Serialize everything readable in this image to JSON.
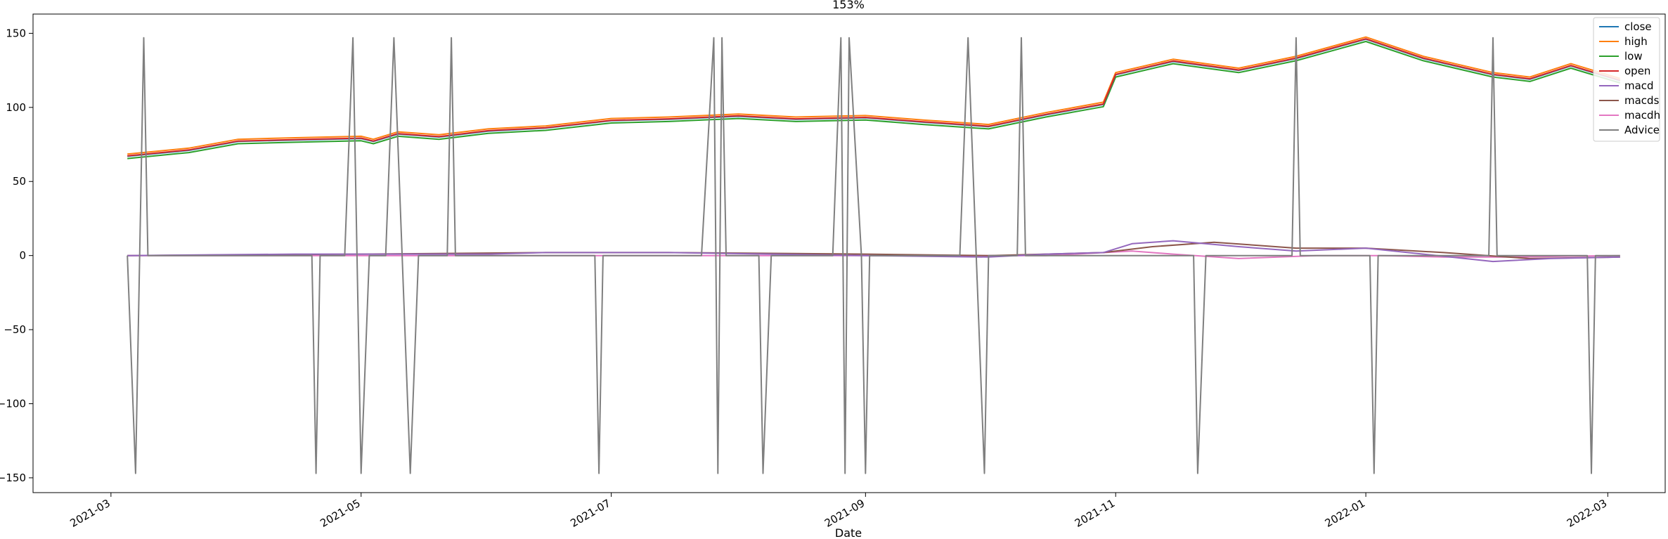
{
  "chart_data": {
    "type": "line",
    "title": "153%",
    "xlabel": "Date",
    "ylabel": "",
    "xlim": [
      "2021-02-10",
      "2022-03-15"
    ],
    "ylim": [
      -160,
      163
    ],
    "x_ticks": [
      {
        "date": "2021-03-01",
        "label": "2021-03"
      },
      {
        "date": "2021-05-01",
        "label": "2021-05"
      },
      {
        "date": "2021-07-01",
        "label": "2021-07"
      },
      {
        "date": "2021-09-01",
        "label": "2021-09"
      },
      {
        "date": "2021-11-01",
        "label": "2021-11"
      },
      {
        "date": "2022-01-01",
        "label": "2022-01"
      },
      {
        "date": "2022-03-01",
        "label": "2022-03"
      }
    ],
    "y_ticks": [
      {
        "value": 150,
        "label": "150"
      },
      {
        "value": 100,
        "label": "100"
      },
      {
        "value": 50,
        "label": "50"
      },
      {
        "value": 0,
        "label": "0"
      },
      {
        "value": -50,
        "label": "−50"
      },
      {
        "value": -100,
        "label": "−100"
      },
      {
        "value": -150,
        "label": "−150"
      }
    ],
    "grid": false,
    "legend_position": "top-right",
    "price_series_points": [
      [
        "2021-03-05",
        67
      ],
      [
        "2021-03-20",
        71
      ],
      [
        "2021-04-01",
        77
      ],
      [
        "2021-04-15",
        78
      ],
      [
        "2021-05-01",
        79
      ],
      [
        "2021-05-04",
        77
      ],
      [
        "2021-05-10",
        82
      ],
      [
        "2021-05-20",
        80
      ],
      [
        "2021-06-01",
        84
      ],
      [
        "2021-06-15",
        86
      ],
      [
        "2021-07-01",
        91
      ],
      [
        "2021-07-15",
        92
      ],
      [
        "2021-08-01",
        94
      ],
      [
        "2021-08-15",
        92
      ],
      [
        "2021-09-01",
        93
      ],
      [
        "2021-09-15",
        90
      ],
      [
        "2021-10-01",
        87
      ],
      [
        "2021-10-15",
        95
      ],
      [
        "2021-10-29",
        102
      ],
      [
        "2021-11-01",
        122
      ],
      [
        "2021-11-15",
        131
      ],
      [
        "2021-12-01",
        125
      ],
      [
        "2021-12-15",
        133
      ],
      [
        "2022-01-01",
        146
      ],
      [
        "2022-01-15",
        133
      ],
      [
        "2022-02-01",
        122
      ],
      [
        "2022-02-10",
        119
      ],
      [
        "2022-02-20",
        128
      ],
      [
        "2022-03-04",
        118
      ]
    ],
    "series": [
      {
        "name": "close",
        "color": "#1f77b4",
        "offset": 0
      },
      {
        "name": "high",
        "color": "#ff7f0e",
        "offset": 1.5
      },
      {
        "name": "low",
        "color": "#2ca02c",
        "offset": -1.5
      },
      {
        "name": "open",
        "color": "#d62728",
        "offset": 0.3
      },
      {
        "name": "macd",
        "color": "#9467bd",
        "points": [
          [
            "2021-03-05",
            0
          ],
          [
            "2021-04-15",
            1
          ],
          [
            "2021-06-01",
            1
          ],
          [
            "2021-06-15",
            2
          ],
          [
            "2021-07-15",
            2
          ],
          [
            "2021-09-01",
            0
          ],
          [
            "2021-10-01",
            -1
          ],
          [
            "2021-10-15",
            1
          ],
          [
            "2021-10-29",
            2
          ],
          [
            "2021-11-05",
            8
          ],
          [
            "2021-11-15",
            10
          ],
          [
            "2021-12-01",
            6
          ],
          [
            "2021-12-15",
            3
          ],
          [
            "2022-01-01",
            5
          ],
          [
            "2022-01-15",
            1
          ],
          [
            "2022-02-01",
            -4
          ],
          [
            "2022-02-15",
            -2
          ],
          [
            "2022-03-04",
            -1
          ]
        ]
      },
      {
        "name": "macds",
        "color": "#8c564b",
        "points": [
          [
            "2021-03-05",
            0
          ],
          [
            "2021-05-01",
            1
          ],
          [
            "2021-06-15",
            2
          ],
          [
            "2021-07-15",
            2
          ],
          [
            "2021-09-01",
            1
          ],
          [
            "2021-10-01",
            0
          ],
          [
            "2021-10-29",
            2
          ],
          [
            "2021-11-10",
            6
          ],
          [
            "2021-11-25",
            9
          ],
          [
            "2021-12-15",
            5
          ],
          [
            "2022-01-01",
            5
          ],
          [
            "2022-01-20",
            2
          ],
          [
            "2022-02-10",
            -2
          ],
          [
            "2022-03-04",
            -1
          ]
        ]
      },
      {
        "name": "macdh",
        "color": "#e377c2",
        "points": [
          [
            "2021-03-05",
            0
          ],
          [
            "2021-05-01",
            0
          ],
          [
            "2021-07-01",
            0
          ],
          [
            "2021-09-01",
            0
          ],
          [
            "2021-10-15",
            0
          ],
          [
            "2021-11-05",
            3
          ],
          [
            "2021-11-15",
            1
          ],
          [
            "2021-12-01",
            -2
          ],
          [
            "2021-12-20",
            0
          ],
          [
            "2022-01-05",
            0
          ],
          [
            "2022-01-20",
            -1
          ],
          [
            "2022-02-05",
            -1
          ],
          [
            "2022-03-04",
            0
          ]
        ]
      },
      {
        "name": "Advice",
        "color": "#7f7f7f",
        "points": [
          [
            "2021-03-05",
            0
          ],
          [
            "2021-03-07",
            -147
          ],
          [
            "2021-03-09",
            147
          ],
          [
            "2021-03-10",
            0
          ],
          [
            "2021-04-19",
            0
          ],
          [
            "2021-04-20",
            -147
          ],
          [
            "2021-04-21",
            0
          ],
          [
            "2021-04-27",
            0
          ],
          [
            "2021-04-29",
            147
          ],
          [
            "2021-05-01",
            -147
          ],
          [
            "2021-05-03",
            0
          ],
          [
            "2021-05-07",
            0
          ],
          [
            "2021-05-09",
            147
          ],
          [
            "2021-05-11",
            0
          ],
          [
            "2021-05-13",
            -147
          ],
          [
            "2021-05-15",
            0
          ],
          [
            "2021-05-22",
            0
          ],
          [
            "2021-05-23",
            147
          ],
          [
            "2021-05-24",
            0
          ],
          [
            "2021-06-27",
            0
          ],
          [
            "2021-06-28",
            -147
          ],
          [
            "2021-06-29",
            0
          ],
          [
            "2021-07-23",
            0
          ],
          [
            "2021-07-26",
            147
          ],
          [
            "2021-07-27",
            -147
          ],
          [
            "2021-07-28",
            147
          ],
          [
            "2021-07-29",
            0
          ],
          [
            "2021-08-06",
            0
          ],
          [
            "2021-08-07",
            -147
          ],
          [
            "2021-08-09",
            0
          ],
          [
            "2021-08-24",
            0
          ],
          [
            "2021-08-26",
            147
          ],
          [
            "2021-08-27",
            -147
          ],
          [
            "2021-08-28",
            147
          ],
          [
            "2021-08-31",
            0
          ],
          [
            "2021-09-01",
            -147
          ],
          [
            "2021-09-02",
            0
          ],
          [
            "2021-09-24",
            0
          ],
          [
            "2021-09-26",
            147
          ],
          [
            "2021-09-30",
            -147
          ],
          [
            "2021-10-01",
            0
          ],
          [
            "2021-10-08",
            0
          ],
          [
            "2021-10-09",
            147
          ],
          [
            "2021-10-10",
            0
          ],
          [
            "2021-11-20",
            0
          ],
          [
            "2021-11-21",
            -147
          ],
          [
            "2021-11-23",
            0
          ],
          [
            "2021-12-14",
            0
          ],
          [
            "2021-12-15",
            147
          ],
          [
            "2021-12-16",
            0
          ],
          [
            "2022-01-02",
            0
          ],
          [
            "2022-01-03",
            -147
          ],
          [
            "2022-01-04",
            0
          ],
          [
            "2022-01-31",
            0
          ],
          [
            "2022-02-01",
            147
          ],
          [
            "2022-02-02",
            0
          ],
          [
            "2022-02-24",
            0
          ],
          [
            "2022-02-25",
            -147
          ],
          [
            "2022-02-26",
            0
          ],
          [
            "2022-03-04",
            0
          ]
        ]
      }
    ]
  }
}
